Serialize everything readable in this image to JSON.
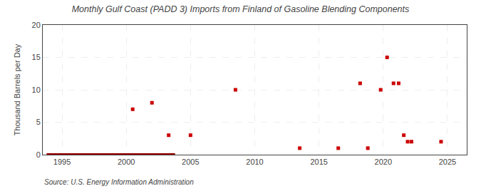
{
  "chart_data": {
    "type": "scatter",
    "title": "Monthly Gulf Coast (PADD 3) Imports from Finland of Gasoline Blending Components",
    "ylabel": "Thousand Barrels per Day",
    "annotations": [
      "Source: U.S. Energy Information Administration"
    ],
    "xlim": [
      1993.5,
      2026.5
    ],
    "ylim": [
      0,
      20
    ],
    "xticks": [
      1995,
      2000,
      2005,
      2010,
      2015,
      2020,
      2025
    ],
    "yticks": [
      0,
      5,
      10,
      15,
      20
    ],
    "grid": true,
    "series": [
      {
        "type": "scatter",
        "marker": "square",
        "color": "#cc0000",
        "x": [
          2000.5,
          2002.0,
          2003.3,
          2005.0,
          2008.5,
          2013.5,
          2016.5,
          2018.2,
          2018.8,
          2019.8,
          2020.3,
          2020.8,
          2021.2,
          2021.6,
          2021.9,
          2022.2,
          2024.5
        ],
        "values": [
          7,
          8,
          3,
          3,
          10,
          1,
          1,
          11,
          1,
          10,
          15,
          11,
          11,
          3,
          2,
          2,
          2
        ]
      },
      {
        "type": "line",
        "color": "#990000",
        "x": [
          1993.8,
          2003.8
        ],
        "values": [
          0,
          0
        ]
      }
    ]
  }
}
